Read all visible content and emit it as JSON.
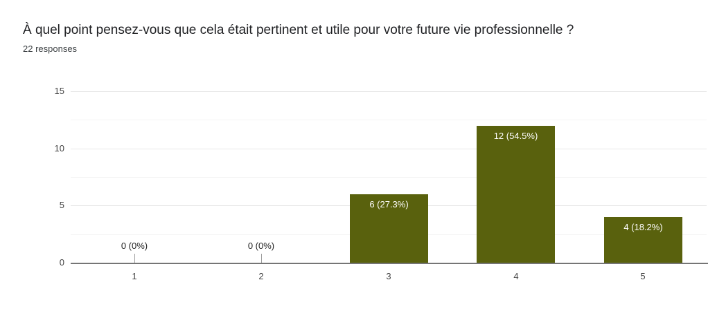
{
  "chart_data": {
    "type": "bar",
    "title": "À quel point pensez-vous que cela était pertinent et utile pour votre future vie professionnelle ?",
    "subtitle": "22 responses",
    "total_responses": 22,
    "categories": [
      "1",
      "2",
      "3",
      "4",
      "5"
    ],
    "values": [
      0,
      0,
      6,
      12,
      4
    ],
    "labels": [
      "0 (0%)",
      "0 (0%)",
      "6 (27.3%)",
      "12 (54.5%)",
      "4 (18.2%)"
    ],
    "xlabel": "",
    "ylabel": "",
    "ylim": [
      0,
      15
    ],
    "yticks": [
      0,
      5,
      10,
      15
    ],
    "grid": true,
    "legend": "none",
    "colors": {
      "bar": "#59610d",
      "bar_label_text": "#ffffff",
      "axis_line": "#757575",
      "gridline_major": "#e6e6e6",
      "gridline_minor": "#f3f3f3",
      "axis_text": "#444444",
      "title_text": "#202124",
      "zero_label_text": "#212121",
      "zero_stem": "#9e9e9e"
    }
  }
}
